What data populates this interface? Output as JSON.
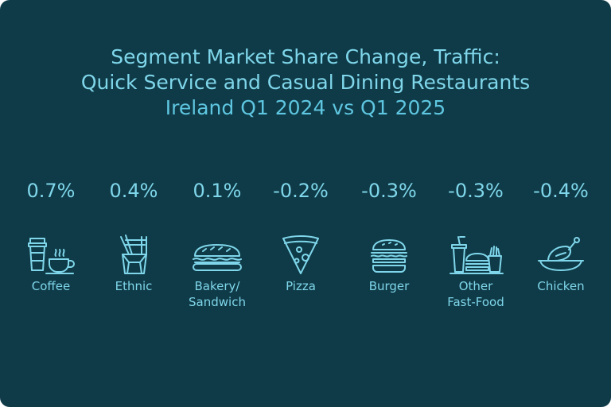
{
  "chart_data": {
    "type": "table",
    "title": [
      "Segment Market Share Change, Traffic:",
      "Quick Service and Casual Dining Restaurants",
      "Ireland Q1 2024 vs Q1 2025"
    ],
    "categories": [
      "Coffee",
      "Ethnic",
      "Bakery/ Sandwich",
      "Pizza",
      "Burger",
      "Other Fast-Food",
      "Chicken"
    ],
    "values": [
      0.7,
      0.4,
      0.1,
      -0.2,
      -0.3,
      -0.3,
      -0.4
    ],
    "unit": "%"
  },
  "segments": [
    {
      "value": "0.7%",
      "label": [
        "Coffee"
      ],
      "icon": "coffee-icon"
    },
    {
      "value": "0.4%",
      "label": [
        "Ethnic"
      ],
      "icon": "noodle-box-icon"
    },
    {
      "value": "0.1%",
      "label": [
        "Bakery/",
        "Sandwich"
      ],
      "icon": "sandwich-icon"
    },
    {
      "value": "-0.2%",
      "label": [
        "Pizza"
      ],
      "icon": "pizza-slice-icon"
    },
    {
      "value": "-0.3%",
      "label": [
        "Burger"
      ],
      "icon": "burger-icon"
    },
    {
      "value": "-0.3%",
      "label": [
        "Other",
        "Fast-Food"
      ],
      "icon": "fast-food-icon"
    },
    {
      "value": "-0.4%",
      "label": [
        "Chicken"
      ],
      "icon": "chicken-icon"
    }
  ],
  "colors": {
    "background": "#0f3b48",
    "text": "#7fd6ea",
    "accent": "#5ec6e0"
  }
}
